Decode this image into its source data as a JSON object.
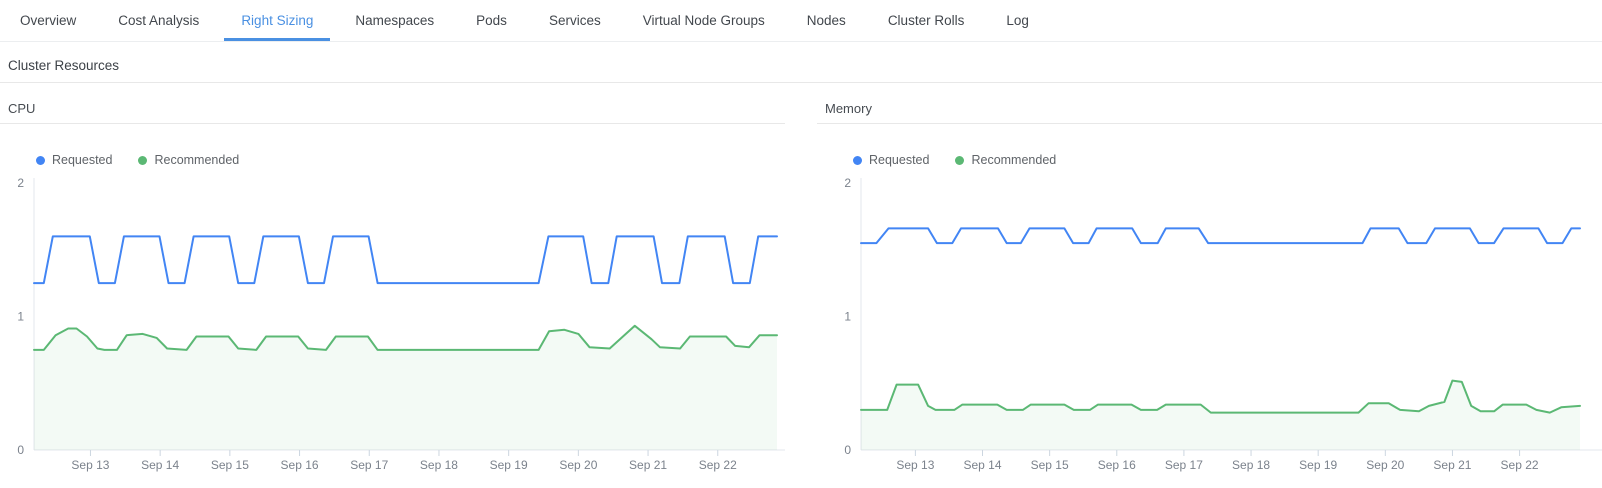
{
  "tabs": {
    "items": [
      {
        "label": "Overview"
      },
      {
        "label": "Cost Analysis"
      },
      {
        "label": "Right Sizing"
      },
      {
        "label": "Namespaces"
      },
      {
        "label": "Pods"
      },
      {
        "label": "Services"
      },
      {
        "label": "Virtual Node Groups"
      },
      {
        "label": "Nodes"
      },
      {
        "label": "Cluster Rolls"
      },
      {
        "label": "Log"
      }
    ],
    "active_label": "Right Sizing",
    "active_color": "#4a90e2"
  },
  "section": {
    "title": "Cluster Resources"
  },
  "colors": {
    "requested_blue": "#4285f4",
    "recommended_green": "#5bb874",
    "recommended_fill": "rgba(91,184,116,0.07)",
    "axis": "#e3e7ed",
    "tick": "#ccd6e0"
  },
  "chart_data": [
    {
      "id": "cpu",
      "type": "line",
      "title": "CPU",
      "ylim": [
        0,
        2
      ],
      "y_ticks": [
        0,
        1,
        2
      ],
      "grid": false,
      "legend_position": "top-left",
      "x_range": [
        12.19,
        22.85
      ],
      "x_ticks": [
        {
          "v": 13,
          "label": "Sep 13"
        },
        {
          "v": 14,
          "label": "Sep 14"
        },
        {
          "v": 15,
          "label": "Sep 15"
        },
        {
          "v": 16,
          "label": "Sep 16"
        },
        {
          "v": 17,
          "label": "Sep 17"
        },
        {
          "v": 18,
          "label": "Sep 18"
        },
        {
          "v": 19,
          "label": "Sep 19"
        },
        {
          "v": 20,
          "label": "Sep 20"
        },
        {
          "v": 21,
          "label": "Sep 21"
        },
        {
          "v": 22,
          "label": "Sep 22"
        }
      ],
      "axis_color": "#e3e7ed",
      "tick_color": "#ccd6e0",
      "series": [
        {
          "name": "Requested",
          "color": "#4285f4",
          "fill": null,
          "points": [
            [
              12.19,
              1.25
            ],
            [
              12.33,
              1.25
            ],
            [
              12.46,
              1.6
            ],
            [
              12.99,
              1.6
            ],
            [
              13.12,
              1.25
            ],
            [
              13.35,
              1.25
            ],
            [
              13.48,
              1.6
            ],
            [
              13.99,
              1.6
            ],
            [
              14.12,
              1.25
            ],
            [
              14.35,
              1.25
            ],
            [
              14.48,
              1.6
            ],
            [
              14.99,
              1.6
            ],
            [
              15.12,
              1.25
            ],
            [
              15.35,
              1.25
            ],
            [
              15.48,
              1.6
            ],
            [
              15.99,
              1.6
            ],
            [
              16.12,
              1.25
            ],
            [
              16.35,
              1.25
            ],
            [
              16.48,
              1.6
            ],
            [
              16.99,
              1.6
            ],
            [
              17.12,
              1.25
            ],
            [
              19.43,
              1.25
            ],
            [
              19.57,
              1.6
            ],
            [
              20.07,
              1.6
            ],
            [
              20.19,
              1.25
            ],
            [
              20.43,
              1.25
            ],
            [
              20.55,
              1.6
            ],
            [
              21.08,
              1.6
            ],
            [
              21.2,
              1.25
            ],
            [
              21.45,
              1.25
            ],
            [
              21.57,
              1.6
            ],
            [
              22.1,
              1.6
            ],
            [
              22.22,
              1.25
            ],
            [
              22.46,
              1.25
            ],
            [
              22.58,
              1.6
            ],
            [
              22.85,
              1.6
            ]
          ]
        },
        {
          "name": "Recommended",
          "color": "#5bb874",
          "fill": "rgba(91,184,116,0.07)",
          "points": [
            [
              12.19,
              0.75
            ],
            [
              12.33,
              0.75
            ],
            [
              12.5,
              0.86
            ],
            [
              12.68,
              0.91
            ],
            [
              12.8,
              0.91
            ],
            [
              12.95,
              0.85
            ],
            [
              13.1,
              0.76
            ],
            [
              13.2,
              0.75
            ],
            [
              13.38,
              0.75
            ],
            [
              13.52,
              0.86
            ],
            [
              13.75,
              0.87
            ],
            [
              13.95,
              0.84
            ],
            [
              14.1,
              0.76
            ],
            [
              14.38,
              0.75
            ],
            [
              14.52,
              0.85
            ],
            [
              14.98,
              0.85
            ],
            [
              15.12,
              0.76
            ],
            [
              15.38,
              0.75
            ],
            [
              15.52,
              0.85
            ],
            [
              15.98,
              0.85
            ],
            [
              16.12,
              0.76
            ],
            [
              16.38,
              0.75
            ],
            [
              16.52,
              0.85
            ],
            [
              16.98,
              0.85
            ],
            [
              17.12,
              0.75
            ],
            [
              19.43,
              0.75
            ],
            [
              19.58,
              0.89
            ],
            [
              19.8,
              0.9
            ],
            [
              20.0,
              0.87
            ],
            [
              20.16,
              0.77
            ],
            [
              20.45,
              0.76
            ],
            [
              20.81,
              0.93
            ],
            [
              21.05,
              0.83
            ],
            [
              21.17,
              0.77
            ],
            [
              21.46,
              0.76
            ],
            [
              21.6,
              0.85
            ],
            [
              22.12,
              0.85
            ],
            [
              22.25,
              0.78
            ],
            [
              22.45,
              0.77
            ],
            [
              22.6,
              0.86
            ],
            [
              22.85,
              0.86
            ]
          ]
        }
      ]
    },
    {
      "id": "memory",
      "type": "line",
      "title": "Memory",
      "ylim": [
        0,
        2
      ],
      "y_ticks": [
        0,
        1,
        2
      ],
      "grid": false,
      "legend_position": "top-left",
      "x_range": [
        12.19,
        22.9
      ],
      "x_ticks": [
        {
          "v": 13,
          "label": "Sep 13"
        },
        {
          "v": 14,
          "label": "Sep 14"
        },
        {
          "v": 15,
          "label": "Sep 15"
        },
        {
          "v": 16,
          "label": "Sep 16"
        },
        {
          "v": 17,
          "label": "Sep 17"
        },
        {
          "v": 18,
          "label": "Sep 18"
        },
        {
          "v": 19,
          "label": "Sep 19"
        },
        {
          "v": 20,
          "label": "Sep 20"
        },
        {
          "v": 21,
          "label": "Sep 21"
        },
        {
          "v": 22,
          "label": "Sep 22"
        }
      ],
      "axis_color": "#e3e7ed",
      "tick_color": "#ccd6e0",
      "series": [
        {
          "name": "Requested",
          "color": "#4285f4",
          "fill": null,
          "points": [
            [
              12.19,
              1.55
            ],
            [
              12.42,
              1.55
            ],
            [
              12.6,
              1.66
            ],
            [
              13.19,
              1.66
            ],
            [
              13.32,
              1.55
            ],
            [
              13.55,
              1.55
            ],
            [
              13.68,
              1.66
            ],
            [
              14.23,
              1.66
            ],
            [
              14.36,
              1.55
            ],
            [
              14.57,
              1.55
            ],
            [
              14.7,
              1.66
            ],
            [
              15.22,
              1.66
            ],
            [
              15.35,
              1.55
            ],
            [
              15.58,
              1.55
            ],
            [
              15.7,
              1.66
            ],
            [
              16.23,
              1.66
            ],
            [
              16.36,
              1.55
            ],
            [
              16.61,
              1.55
            ],
            [
              16.73,
              1.66
            ],
            [
              17.22,
              1.66
            ],
            [
              17.36,
              1.55
            ],
            [
              19.66,
              1.55
            ],
            [
              19.78,
              1.66
            ],
            [
              20.2,
              1.66
            ],
            [
              20.33,
              1.55
            ],
            [
              20.61,
              1.55
            ],
            [
              20.74,
              1.66
            ],
            [
              21.26,
              1.66
            ],
            [
              21.39,
              1.55
            ],
            [
              21.62,
              1.55
            ],
            [
              21.76,
              1.66
            ],
            [
              22.28,
              1.66
            ],
            [
              22.41,
              1.55
            ],
            [
              22.64,
              1.55
            ],
            [
              22.77,
              1.66
            ],
            [
              22.9,
              1.66
            ]
          ]
        },
        {
          "name": "Recommended",
          "color": "#5bb874",
          "fill": "rgba(91,184,116,0.07)",
          "points": [
            [
              12.19,
              0.3
            ],
            [
              12.58,
              0.3
            ],
            [
              12.72,
              0.49
            ],
            [
              13.04,
              0.49
            ],
            [
              13.19,
              0.33
            ],
            [
              13.3,
              0.3
            ],
            [
              13.58,
              0.3
            ],
            [
              13.7,
              0.34
            ],
            [
              14.22,
              0.34
            ],
            [
              14.36,
              0.3
            ],
            [
              14.6,
              0.3
            ],
            [
              14.72,
              0.34
            ],
            [
              15.22,
              0.34
            ],
            [
              15.36,
              0.3
            ],
            [
              15.6,
              0.3
            ],
            [
              15.72,
              0.34
            ],
            [
              16.22,
              0.34
            ],
            [
              16.36,
              0.3
            ],
            [
              16.6,
              0.3
            ],
            [
              16.73,
              0.34
            ],
            [
              17.25,
              0.34
            ],
            [
              17.4,
              0.28
            ],
            [
              19.6,
              0.28
            ],
            [
              19.75,
              0.35
            ],
            [
              20.05,
              0.35
            ],
            [
              20.22,
              0.3
            ],
            [
              20.5,
              0.29
            ],
            [
              20.65,
              0.33
            ],
            [
              20.88,
              0.36
            ],
            [
              21.0,
              0.52
            ],
            [
              21.14,
              0.51
            ],
            [
              21.28,
              0.33
            ],
            [
              21.42,
              0.29
            ],
            [
              21.62,
              0.29
            ],
            [
              21.75,
              0.34
            ],
            [
              22.1,
              0.34
            ],
            [
              22.25,
              0.3
            ],
            [
              22.45,
              0.28
            ],
            [
              22.62,
              0.32
            ],
            [
              22.9,
              0.33
            ]
          ]
        }
      ]
    }
  ]
}
